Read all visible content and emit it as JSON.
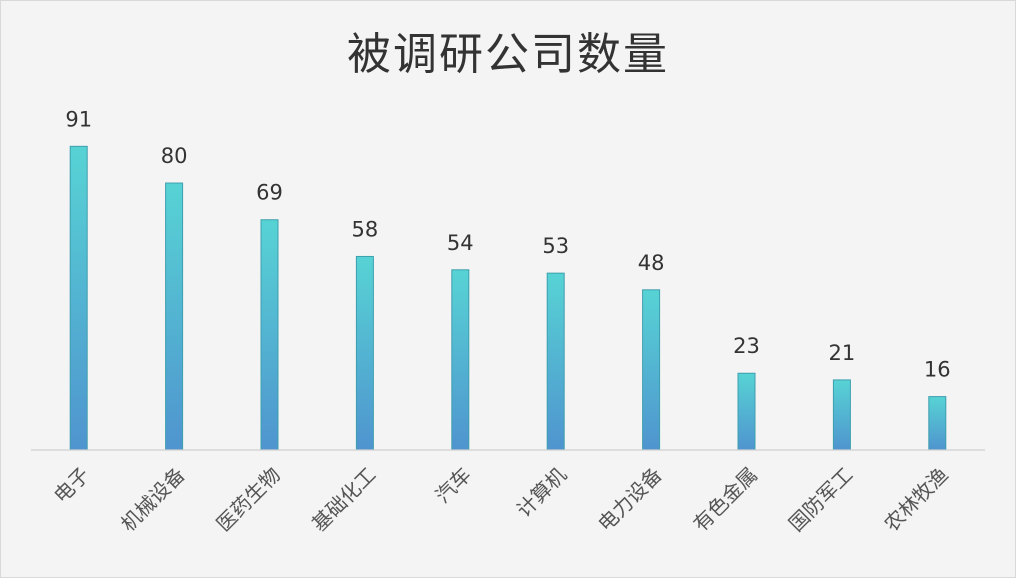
{
  "chart_data": {
    "type": "bar",
    "title": "被调研公司数量",
    "xlabel": "",
    "ylabel": "",
    "categories": [
      "电子",
      "机械设备",
      "医药生物",
      "基础化工",
      "汽车",
      "计算机",
      "电力设备",
      "有色金属",
      "国防军工",
      "农林牧渔"
    ],
    "series": [
      {
        "values": [
          91,
          80,
          69,
          58,
          54,
          53,
          48,
          23,
          21,
          16
        ]
      }
    ],
    "ylim": [
      0,
      100
    ],
    "grid": false,
    "legend": "none",
    "data_labels": true
  },
  "colors": {
    "bar_top": "#57d3d4",
    "bar_bottom": "#4f94cf",
    "bar_stroke": "#3d9fae",
    "axis": "#cfcfcf",
    "background": "#f4f4f4"
  }
}
